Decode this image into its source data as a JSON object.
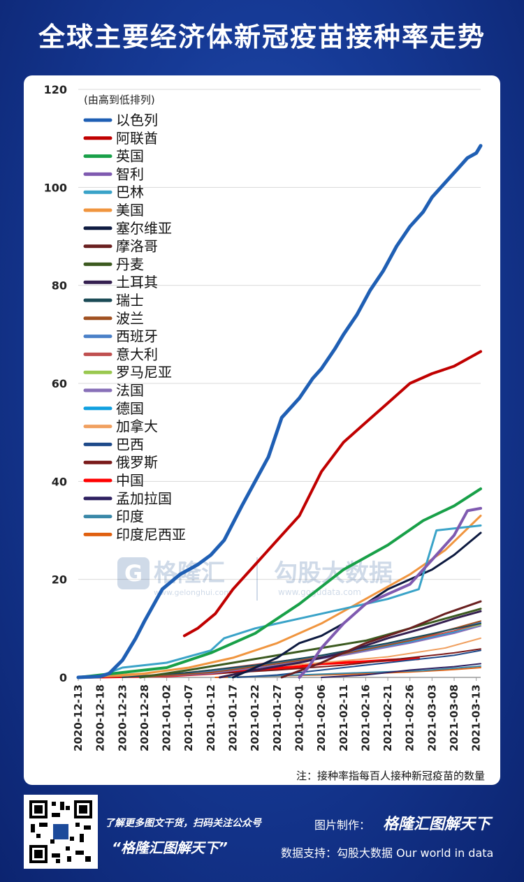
{
  "header": {
    "title": "全球主要经济体新冠疫苗接种率走势"
  },
  "chart_data": {
    "type": "line",
    "legend_title": "(由高到低排列)",
    "legend_placement": "top-left",
    "note": "注：接种率指每百人接种新冠疫苗的数量",
    "ylim": [
      0,
      120
    ],
    "yticks": [
      0,
      20,
      40,
      60,
      80,
      100,
      120
    ],
    "grid": true,
    "x_tick_labels": [
      "2020-12-13",
      "2020-12-18",
      "2020-12-23",
      "2020-12-28",
      "2021-01-02",
      "2021-01-07",
      "2021-01-12",
      "2021-01-17",
      "2021-01-22",
      "2021-01-27",
      "2021-02-01",
      "2021-02-06",
      "2021-02-11",
      "2021-02-16",
      "2021-02-21",
      "2021-02-26",
      "2021-03-03",
      "2021-03-08",
      "2021-03-13"
    ],
    "series": [
      {
        "name": "以色列",
        "color": "#1f5fb4",
        "width": 5,
        "points": [
          [
            "2020-12-13",
            0
          ],
          [
            "2020-12-18",
            0.2
          ],
          [
            "2020-12-20",
            0.8
          ],
          [
            "2020-12-23",
            3.5
          ],
          [
            "2020-12-26",
            8
          ],
          [
            "2020-12-28",
            11.5
          ],
          [
            "2021-01-01",
            18
          ],
          [
            "2021-01-05",
            21
          ],
          [
            "2021-01-09",
            23
          ],
          [
            "2021-01-12",
            25
          ],
          [
            "2021-01-15",
            28
          ],
          [
            "2021-01-19",
            35
          ],
          [
            "2021-01-22",
            40
          ],
          [
            "2021-01-25",
            45
          ],
          [
            "2021-01-28",
            53
          ],
          [
            "2021-02-01",
            57
          ],
          [
            "2021-02-04",
            61
          ],
          [
            "2021-02-06",
            63
          ],
          [
            "2021-02-09",
            67
          ],
          [
            "2021-02-11",
            70
          ],
          [
            "2021-02-14",
            74
          ],
          [
            "2021-02-17",
            79
          ],
          [
            "2021-02-20",
            83
          ],
          [
            "2021-02-23",
            88
          ],
          [
            "2021-02-26",
            92
          ],
          [
            "2021-03-01",
            95
          ],
          [
            "2021-03-03",
            98
          ],
          [
            "2021-03-06",
            101
          ],
          [
            "2021-03-09",
            104
          ],
          [
            "2021-03-11",
            106
          ],
          [
            "2021-03-13",
            107
          ],
          [
            "2021-03-14",
            108.5
          ]
        ]
      },
      {
        "name": "阿联酋",
        "color": "#c00000",
        "width": 4,
        "points": [
          [
            "2021-01-06",
            8.5
          ],
          [
            "2021-01-09",
            10
          ],
          [
            "2021-01-13",
            13
          ],
          [
            "2021-01-17",
            18
          ],
          [
            "2021-01-22",
            23
          ],
          [
            "2021-01-27",
            28
          ],
          [
            "2021-02-01",
            33
          ],
          [
            "2021-02-06",
            42
          ],
          [
            "2021-02-11",
            48
          ],
          [
            "2021-02-16",
            52
          ],
          [
            "2021-02-21",
            56
          ],
          [
            "2021-02-26",
            60
          ],
          [
            "2021-03-03",
            62
          ],
          [
            "2021-03-08",
            63.5
          ],
          [
            "2021-03-14",
            66.5
          ]
        ]
      },
      {
        "name": "英国",
        "color": "#18a048",
        "width": 4,
        "points": [
          [
            "2020-12-13",
            0
          ],
          [
            "2020-12-23",
            1
          ],
          [
            "2021-01-02",
            2
          ],
          [
            "2021-01-12",
            5
          ],
          [
            "2021-01-22",
            9
          ],
          [
            "2021-02-01",
            15
          ],
          [
            "2021-02-11",
            22
          ],
          [
            "2021-02-21",
            27
          ],
          [
            "2021-03-01",
            32
          ],
          [
            "2021-03-08",
            35
          ],
          [
            "2021-03-14",
            38.5
          ]
        ]
      },
      {
        "name": "智利",
        "color": "#7f5ab0",
        "width": 4,
        "points": [
          [
            "2021-02-01",
            0
          ],
          [
            "2021-02-03",
            2
          ],
          [
            "2021-02-06",
            6
          ],
          [
            "2021-02-11",
            11
          ],
          [
            "2021-02-16",
            15
          ],
          [
            "2021-02-21",
            17
          ],
          [
            "2021-02-26",
            19
          ],
          [
            "2021-03-03",
            24
          ],
          [
            "2021-03-08",
            29
          ],
          [
            "2021-03-11",
            34
          ],
          [
            "2021-03-14",
            34.5
          ]
        ]
      },
      {
        "name": "巴林",
        "color": "#3aa3c8",
        "width": 3,
        "points": [
          [
            "2020-12-20",
            1
          ],
          [
            "2020-12-23",
            2
          ],
          [
            "2021-01-02",
            3
          ],
          [
            "2021-01-12",
            5.5
          ],
          [
            "2021-01-15",
            8
          ],
          [
            "2021-01-22",
            10
          ],
          [
            "2021-02-01",
            12
          ],
          [
            "2021-02-11",
            14
          ],
          [
            "2021-02-21",
            16
          ],
          [
            "2021-02-28",
            18
          ],
          [
            "2021-03-04",
            30
          ],
          [
            "2021-03-14",
            31
          ]
        ]
      },
      {
        "name": "美国",
        "color": "#f0953f",
        "width": 3,
        "points": [
          [
            "2020-12-14",
            0
          ],
          [
            "2020-12-28",
            0.8
          ],
          [
            "2021-01-07",
            2
          ],
          [
            "2021-01-17",
            4
          ],
          [
            "2021-01-27",
            7
          ],
          [
            "2021-02-06",
            11
          ],
          [
            "2021-02-16",
            16
          ],
          [
            "2021-02-26",
            21
          ],
          [
            "2021-03-06",
            26
          ],
          [
            "2021-03-14",
            33
          ]
        ]
      },
      {
        "name": "塞尔维亚",
        "color": "#0d1a40",
        "width": 3,
        "points": [
          [
            "2021-01-17",
            0
          ],
          [
            "2021-01-22",
            2
          ],
          [
            "2021-01-27",
            4
          ],
          [
            "2021-02-01",
            7
          ],
          [
            "2021-02-06",
            8.5
          ],
          [
            "2021-02-11",
            11
          ],
          [
            "2021-02-16",
            15
          ],
          [
            "2021-02-21",
            18
          ],
          [
            "2021-02-26",
            20
          ],
          [
            "2021-03-03",
            22
          ],
          [
            "2021-03-08",
            25
          ],
          [
            "2021-03-14",
            29.5
          ]
        ]
      },
      {
        "name": "摩洛哥",
        "color": "#6a2020",
        "width": 3,
        "points": [
          [
            "2021-01-28",
            0
          ],
          [
            "2021-02-06",
            3
          ],
          [
            "2021-02-16",
            7
          ],
          [
            "2021-02-26",
            10
          ],
          [
            "2021-03-06",
            13
          ],
          [
            "2021-03-14",
            15.5
          ]
        ]
      },
      {
        "name": "丹麦",
        "color": "#3c5a20",
        "width": 3,
        "points": [
          [
            "2020-12-27",
            0
          ],
          [
            "2021-01-07",
            1.5
          ],
          [
            "2021-01-17",
            3
          ],
          [
            "2021-01-27",
            4.5
          ],
          [
            "2021-02-06",
            6
          ],
          [
            "2021-02-16",
            7.5
          ],
          [
            "2021-02-26",
            10
          ],
          [
            "2021-03-06",
            12
          ],
          [
            "2021-03-14",
            14
          ]
        ]
      },
      {
        "name": "土耳其",
        "color": "#352050",
        "width": 3,
        "points": [
          [
            "2021-01-14",
            0
          ],
          [
            "2021-01-22",
            1.5
          ],
          [
            "2021-02-01",
            3
          ],
          [
            "2021-02-11",
            5
          ],
          [
            "2021-02-21",
            8
          ],
          [
            "2021-03-01",
            10
          ],
          [
            "2021-03-08",
            12
          ],
          [
            "2021-03-14",
            13.5
          ]
        ]
      },
      {
        "name": "瑞士",
        "color": "#1a4a55",
        "width": 2,
        "points": [
          [
            "2020-12-23",
            0
          ],
          [
            "2021-01-07",
            1
          ],
          [
            "2021-01-22",
            2.5
          ],
          [
            "2021-02-06",
            4.5
          ],
          [
            "2021-02-21",
            7
          ],
          [
            "2021-03-06",
            9.5
          ],
          [
            "2021-03-14",
            11
          ]
        ]
      },
      {
        "name": "波兰",
        "color": "#a05020",
        "width": 2,
        "points": [
          [
            "2020-12-27",
            0
          ],
          [
            "2021-01-12",
            1
          ],
          [
            "2021-01-27",
            2.8
          ],
          [
            "2021-02-11",
            4.8
          ],
          [
            "2021-02-26",
            7.5
          ],
          [
            "2021-03-08",
            10
          ],
          [
            "2021-03-14",
            11.5
          ]
        ]
      },
      {
        "name": "西班牙",
        "color": "#4a80c8",
        "width": 2,
        "points": [
          [
            "2020-12-27",
            0
          ],
          [
            "2021-01-12",
            1.2
          ],
          [
            "2021-01-27",
            3
          ],
          [
            "2021-02-11",
            5
          ],
          [
            "2021-02-26",
            7.8
          ],
          [
            "2021-03-08",
            10
          ],
          [
            "2021-03-14",
            11.2
          ]
        ]
      },
      {
        "name": "意大利",
        "color": "#c05050",
        "width": 2,
        "points": [
          [
            "2020-12-27",
            0
          ],
          [
            "2021-01-12",
            1.5
          ],
          [
            "2021-01-27",
            3.2
          ],
          [
            "2021-02-11",
            5
          ],
          [
            "2021-02-26",
            7.5
          ],
          [
            "2021-03-08",
            9.5
          ],
          [
            "2021-03-14",
            11
          ]
        ]
      },
      {
        "name": "罗马尼亚",
        "color": "#9ac850",
        "width": 2,
        "points": [
          [
            "2020-12-27",
            0
          ],
          [
            "2021-01-12",
            1.3
          ],
          [
            "2021-01-27",
            3
          ],
          [
            "2021-02-11",
            5
          ],
          [
            "2021-02-26",
            7.5
          ],
          [
            "2021-03-08",
            9.5
          ],
          [
            "2021-03-14",
            10.8
          ]
        ]
      },
      {
        "name": "法国",
        "color": "#8870b8",
        "width": 2,
        "points": [
          [
            "2020-12-27",
            0
          ],
          [
            "2021-01-12",
            0.8
          ],
          [
            "2021-01-27",
            2.5
          ],
          [
            "2021-02-11",
            4.5
          ],
          [
            "2021-02-26",
            7
          ],
          [
            "2021-03-08",
            9
          ],
          [
            "2021-03-14",
            10.5
          ]
        ]
      },
      {
        "name": "德国",
        "color": "#10a0e0",
        "width": 2,
        "points": [
          [
            "2020-12-27",
            0
          ],
          [
            "2021-01-12",
            1.2
          ],
          [
            "2021-01-27",
            2.8
          ],
          [
            "2021-02-11",
            4.6
          ],
          [
            "2021-02-26",
            7.2
          ],
          [
            "2021-03-08",
            9.2
          ],
          [
            "2021-03-14",
            10.5
          ]
        ]
      },
      {
        "name": "加拿大",
        "color": "#f0a060",
        "width": 2,
        "points": [
          [
            "2020-12-14",
            0
          ],
          [
            "2021-01-07",
            0.8
          ],
          [
            "2021-01-22",
            2
          ],
          [
            "2021-02-06",
            3
          ],
          [
            "2021-02-21",
            4.2
          ],
          [
            "2021-03-06",
            6
          ],
          [
            "2021-03-14",
            8
          ]
        ]
      },
      {
        "name": "巴西",
        "color": "#1e4a8a",
        "width": 2,
        "points": [
          [
            "2021-01-18",
            0
          ],
          [
            "2021-01-27",
            0.5
          ],
          [
            "2021-02-11",
            2
          ],
          [
            "2021-02-26",
            3.5
          ],
          [
            "2021-03-08",
            4.5
          ],
          [
            "2021-03-14",
            5.5
          ]
        ]
      },
      {
        "name": "俄罗斯",
        "color": "#7a1a1a",
        "width": 2,
        "points": [
          [
            "2020-12-14",
            0
          ],
          [
            "2021-01-07",
            0.5
          ],
          [
            "2021-01-27",
            1.5
          ],
          [
            "2021-02-11",
            2.5
          ],
          [
            "2021-02-26",
            4
          ],
          [
            "2021-03-08",
            5
          ],
          [
            "2021-03-14",
            5.8
          ]
        ]
      },
      {
        "name": "中国",
        "color": "#ff0000",
        "width": 4,
        "points": [
          [
            "2020-12-13",
            0
          ],
          [
            "2021-01-02",
            0.3
          ],
          [
            "2021-01-12",
            0.8
          ],
          [
            "2021-01-22",
            1.5
          ],
          [
            "2021-02-01",
            2.2
          ],
          [
            "2021-02-06",
            2.8
          ],
          [
            "2021-02-16",
            3.2
          ],
          [
            "2021-02-21",
            3.5
          ],
          [
            "2021-02-28",
            3.8
          ]
        ]
      },
      {
        "name": "孟加拉国",
        "color": "#2e2060",
        "width": 2,
        "points": [
          [
            "2021-02-06",
            0
          ],
          [
            "2021-02-16",
            0.5
          ],
          [
            "2021-02-26",
            1.5
          ],
          [
            "2021-03-08",
            2.2
          ],
          [
            "2021-03-14",
            2.8
          ]
        ]
      },
      {
        "name": "印度",
        "color": "#3a88a8",
        "width": 2,
        "points": [
          [
            "2021-01-16",
            0
          ],
          [
            "2021-02-01",
            0.5
          ],
          [
            "2021-02-16",
            1
          ],
          [
            "2021-03-01",
            1.4
          ],
          [
            "2021-03-14",
            2.3
          ]
        ]
      },
      {
        "name": "印度尼西亚",
        "color": "#e06010",
        "width": 2,
        "points": [
          [
            "2021-01-13",
            0
          ],
          [
            "2021-01-27",
            0.3
          ],
          [
            "2021-02-11",
            0.6
          ],
          [
            "2021-02-26",
            1.1
          ],
          [
            "2021-03-08",
            1.6
          ],
          [
            "2021-03-14",
            2
          ]
        ]
      }
    ]
  },
  "watermark": {
    "brand_a": "格隆汇",
    "url_a": "www.gelonghui.com",
    "brand_b": "勾股大数据",
    "url_b": "www.gogudata.com"
  },
  "footer": {
    "promo_line": "了解更多图文干货，扫码关注公众号",
    "account_name": "“格隆汇图解天下”",
    "made_by_label": "图片制作：",
    "made_by_brand": "格隆汇图解天下",
    "data_source": "数据支持：勾股大数据 Our world in data"
  }
}
